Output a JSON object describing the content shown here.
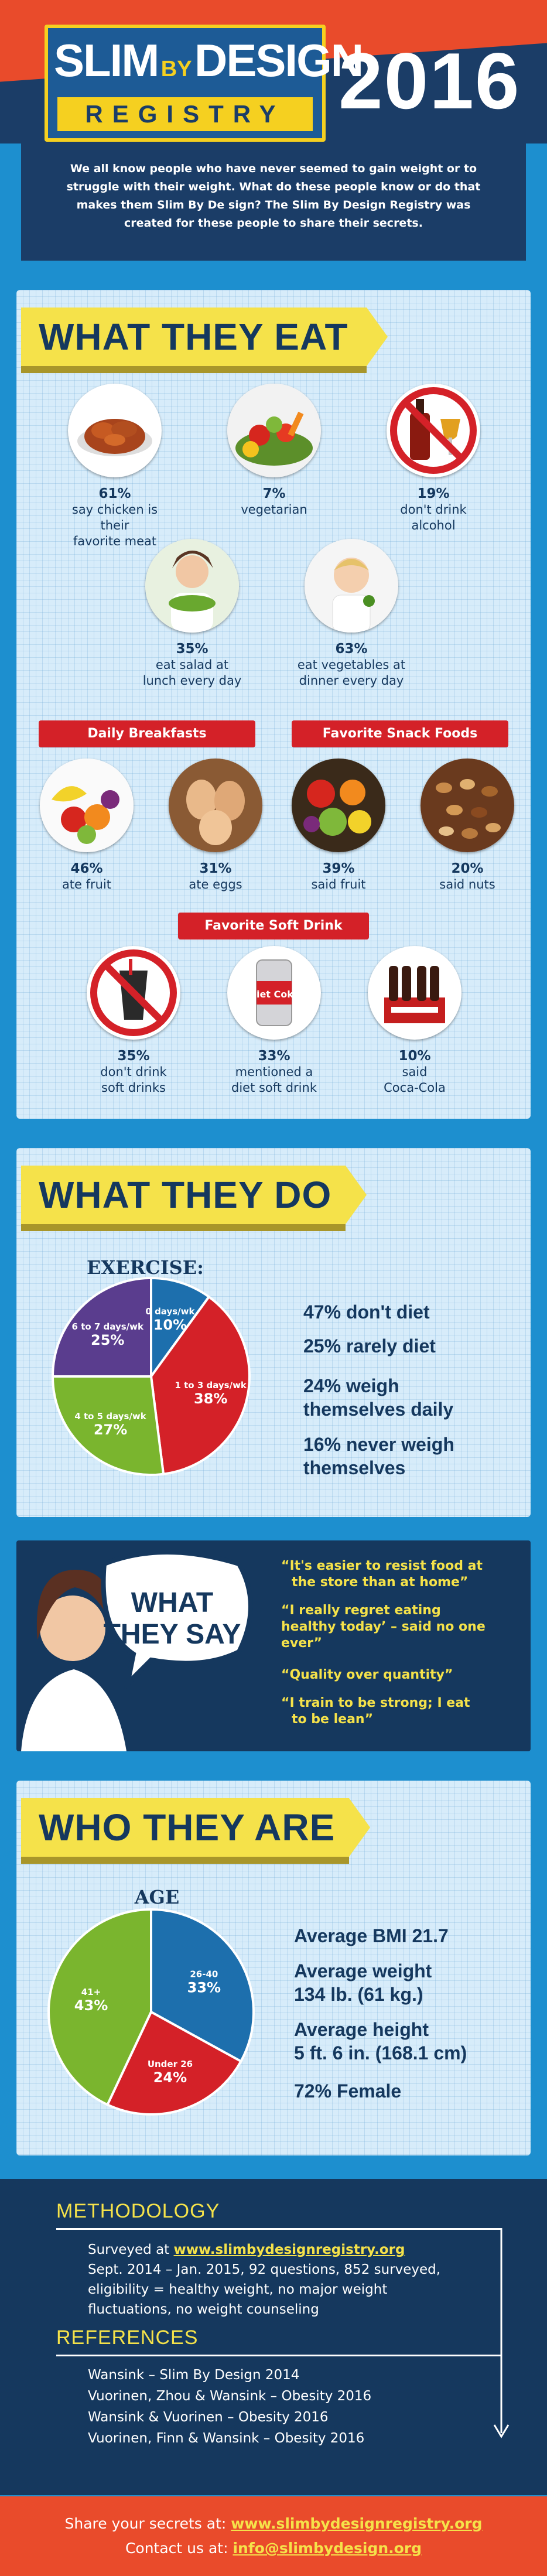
{
  "header": {
    "logo_slim": "SLIM",
    "logo_by": "BY",
    "logo_design": "DESIGN",
    "logo_registry": "REGISTRY",
    "year": "2016",
    "intro": "We all know people who have never seemed to gain weight or to struggle with their weight. What do these people know or do that makes them Slim By De sign? The Slim By Design Registry was created for these people to share their secrets."
  },
  "eat": {
    "title": "WHAT THEY EAT",
    "items": [
      {
        "pct": "61%",
        "line1": "say chicken is their",
        "line2": "favorite meat"
      },
      {
        "pct": "7%",
        "line1": "vegetarian",
        "line2": ""
      },
      {
        "pct": "19%",
        "line1": "don't drink",
        "line2": "alcohol"
      },
      {
        "pct": "35%",
        "line1": "eat salad at",
        "line2": "lunch every day"
      },
      {
        "pct": "63%",
        "line1": "eat vegetables at",
        "line2": "dinner every day"
      }
    ],
    "breakfast_ribbon": "Daily Breakfasts",
    "snack_ribbon": "Favorite Snack Foods",
    "breakfast": [
      {
        "pct": "46%",
        "line1": "ate fruit"
      },
      {
        "pct": "31%",
        "line1": "ate eggs"
      }
    ],
    "snacks": [
      {
        "pct": "39%",
        "line1": "said fruit"
      },
      {
        "pct": "20%",
        "line1": "said nuts"
      }
    ],
    "soft_ribbon": "Favorite Soft Drink",
    "soft": [
      {
        "pct": "35%",
        "line1": "don't drink",
        "line2": "soft drinks"
      },
      {
        "pct": "33%",
        "line1": "mentioned a",
        "line2": "diet soft drink"
      },
      {
        "pct": "10%",
        "line1": "said",
        "line2": "Coca-Cola"
      }
    ],
    "can_label": "Diet Coke"
  },
  "do": {
    "title": "WHAT THEY DO",
    "stats": [
      "47% don't diet",
      "25% rarely diet",
      "24% weigh",
      "themselves daily",
      "16% never weigh",
      "themselves"
    ]
  },
  "say": {
    "bubble_line1": "WHAT",
    "bubble_line2": "THEY SAY",
    "quotes": [
      {
        "line1": "“It's easier to resist food at",
        "line2": "the store than at home”"
      },
      {
        "line1": "“I really regret eating",
        "line2": "healthy today’ – said no one ever”"
      },
      {
        "line1": "“Quality over quantity”",
        "line2": ""
      },
      {
        "line1": "“I train to be strong; I eat",
        "line2": "to be lean”"
      }
    ]
  },
  "are": {
    "title": "WHO THEY ARE",
    "stats": [
      "Average BMI 21.7",
      "Average weight",
      "134 lb. (61 kg.)",
      "Average height",
      "5 ft. 6 in. (168.1 cm)",
      "72% Female"
    ]
  },
  "methodology": {
    "heading": "METHODOLOGY",
    "surveyed_prefix": "Surveyed at ",
    "surveyed_link": "www.slimbydesignregistry.org",
    "lines": [
      "Sept. 2014 – Jan. 2015,  92 questions, 852 surveyed,",
      "eligibility = healthy weight, no major weight",
      "fluctuations, no weight counseling"
    ]
  },
  "references": {
    "heading": "REFERENCES",
    "lines": [
      "Wansink – Slim By Design 2014",
      "Vuorinen, Zhou & Wansink – Obesity 2016",
      "Wansink & Vuorinen – Obesity 2016",
      "Vuorinen, Finn & Wansink – Obesity 2016"
    ]
  },
  "footer": {
    "share_prefix": "Share your secrets at: ",
    "share_link": "www.slimbydesignregistry.org",
    "contact_prefix": "Contact us at: ",
    "contact_link": "info@slimbydesign.org"
  },
  "colors": {
    "navy": "#15385e",
    "yellow": "#f5e24a",
    "red": "#d42128",
    "green": "#7ab52e",
    "blue": "#1d6fad",
    "purple": "#5a3d8e",
    "orange": "#e94b2b"
  },
  "chart_data": [
    {
      "type": "pie",
      "title": "EXERCISE:",
      "categories": [
        "0 days/wk",
        "1 to 3 days/wk",
        "4 to 5 days/wk",
        "6 to 7 days/wk"
      ],
      "values": [
        10,
        38,
        27,
        25
      ],
      "labels": [
        "10%",
        "38%",
        "27%",
        "25%"
      ],
      "colors": [
        "#1d6fad",
        "#d42128",
        "#7ab52e",
        "#5a3d8e"
      ]
    },
    {
      "type": "pie",
      "title": "AGE",
      "categories": [
        "26-40",
        "Under 26",
        "41+"
      ],
      "values": [
        33,
        24,
        43
      ],
      "labels": [
        "33%",
        "24%",
        "43%"
      ],
      "colors": [
        "#1d6fad",
        "#d42128",
        "#7ab52e"
      ]
    }
  ]
}
